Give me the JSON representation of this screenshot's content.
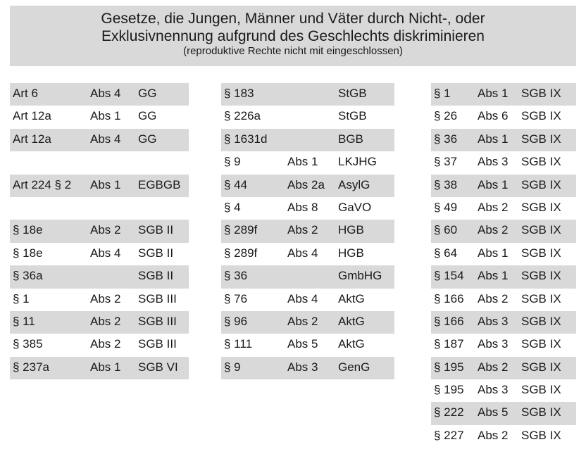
{
  "header": {
    "title_line1": "Gesetze, die Jungen, Männer und Väter durch Nicht-, oder",
    "title_line2": "Exklusivnennung aufgrund des Geschlechts diskriminieren",
    "subtitle": "(reproduktive Rechte nicht mit eingeschlossen)"
  },
  "columns": [
    {
      "rows": [
        {
          "a": "Art 6",
          "b": "Abs 4",
          "c": "GG",
          "shaded": true
        },
        {
          "a": "Art 12a",
          "b": "Abs 1",
          "c": "GG",
          "shaded": false
        },
        {
          "a": "Art 12a",
          "b": "Abs 4",
          "c": "GG",
          "shaded": true
        },
        {
          "a": "",
          "b": "",
          "c": "",
          "shaded": false
        },
        {
          "a": "Art 224 § 2",
          "b": "Abs 1",
          "c": "EGBGB",
          "shaded": true
        },
        {
          "a": "",
          "b": "",
          "c": "",
          "shaded": false
        },
        {
          "a": "§ 18e",
          "b": "Abs 2",
          "c": "SGB II",
          "shaded": true
        },
        {
          "a": "§ 18e",
          "b": "Abs 4",
          "c": "SGB II",
          "shaded": false
        },
        {
          "a": "§ 36a",
          "b": "",
          "c": "SGB II",
          "shaded": true
        },
        {
          "a": "§ 1",
          "b": "Abs 2",
          "c": "SGB III",
          "shaded": false
        },
        {
          "a": "§ 11",
          "b": "Abs 2",
          "c": "SGB III",
          "shaded": true
        },
        {
          "a": "§ 385",
          "b": "Abs 2",
          "c": "SGB III",
          "shaded": false
        },
        {
          "a": "§ 237a",
          "b": "Abs 1",
          "c": "SGB VI",
          "shaded": true
        }
      ]
    },
    {
      "rows": [
        {
          "a": "§ 183",
          "b": "",
          "c": "StGB",
          "shaded": true
        },
        {
          "a": "§ 226a",
          "b": "",
          "c": "StGB",
          "shaded": false
        },
        {
          "a": "§ 1631d",
          "b": "",
          "c": "BGB",
          "shaded": true
        },
        {
          "a": "§ 9",
          "b": "Abs 1",
          "c": "LKJHG",
          "shaded": false
        },
        {
          "a": "§ 44",
          "b": "Abs 2a",
          "c": "AsylG",
          "shaded": true
        },
        {
          "a": "§ 4",
          "b": "Abs 8",
          "c": "GaVO",
          "shaded": false
        },
        {
          "a": "§ 289f",
          "b": "Abs 2",
          "c": "HGB",
          "shaded": true
        },
        {
          "a": "§ 289f",
          "b": "Abs 4",
          "c": "HGB",
          "shaded": false
        },
        {
          "a": "§ 36",
          "b": "",
          "c": "GmbHG",
          "shaded": true
        },
        {
          "a": "§ 76",
          "b": "Abs 4",
          "c": "AktG",
          "shaded": false
        },
        {
          "a": "§ 96",
          "b": "Abs 2",
          "c": "AktG",
          "shaded": true
        },
        {
          "a": "§ 111",
          "b": "Abs 5",
          "c": "AktG",
          "shaded": false
        },
        {
          "a": "§ 9",
          "b": "Abs 3",
          "c": "GenG",
          "shaded": true
        }
      ]
    },
    {
      "rows": [
        {
          "a": "§ 1",
          "b": "Abs 1",
          "c": "SGB IX",
          "shaded": true
        },
        {
          "a": "§ 26",
          "b": "Abs 6",
          "c": "SGB IX",
          "shaded": false
        },
        {
          "a": "§ 36",
          "b": "Abs 1",
          "c": "SGB IX",
          "shaded": true
        },
        {
          "a": "§ 37",
          "b": "Abs 3",
          "c": "SGB IX",
          "shaded": false
        },
        {
          "a": "§ 38",
          "b": "Abs 1",
          "c": "SGB IX",
          "shaded": true
        },
        {
          "a": "§ 49",
          "b": "Abs 2",
          "c": "SGB IX",
          "shaded": false
        },
        {
          "a": "§ 60",
          "b": "Abs 2",
          "c": "SGB IX",
          "shaded": true
        },
        {
          "a": "§ 64",
          "b": "Abs 1",
          "c": "SGB IX",
          "shaded": false
        },
        {
          "a": "§ 154",
          "b": "Abs 1",
          "c": "SGB IX",
          "shaded": true
        },
        {
          "a": "§ 166",
          "b": "Abs 2",
          "c": "SGB IX",
          "shaded": false
        },
        {
          "a": "§ 166",
          "b": "Abs 3",
          "c": "SGB IX",
          "shaded": true
        },
        {
          "a": "§ 187",
          "b": "Abs 3",
          "c": "SGB IX",
          "shaded": false
        },
        {
          "a": "§ 195",
          "b": "Abs 2",
          "c": "SGB IX",
          "shaded": true
        },
        {
          "a": "§ 195",
          "b": "Abs 3",
          "c": "SGB IX",
          "shaded": false
        },
        {
          "a": "§ 222",
          "b": "Abs 5",
          "c": "SGB IX",
          "shaded": true
        },
        {
          "a": "§ 227",
          "b": "Abs 2",
          "c": "SGB IX",
          "shaded": false
        }
      ]
    }
  ],
  "colors": {
    "shade": "#d9d9d9",
    "text": "#1a1a1a"
  }
}
